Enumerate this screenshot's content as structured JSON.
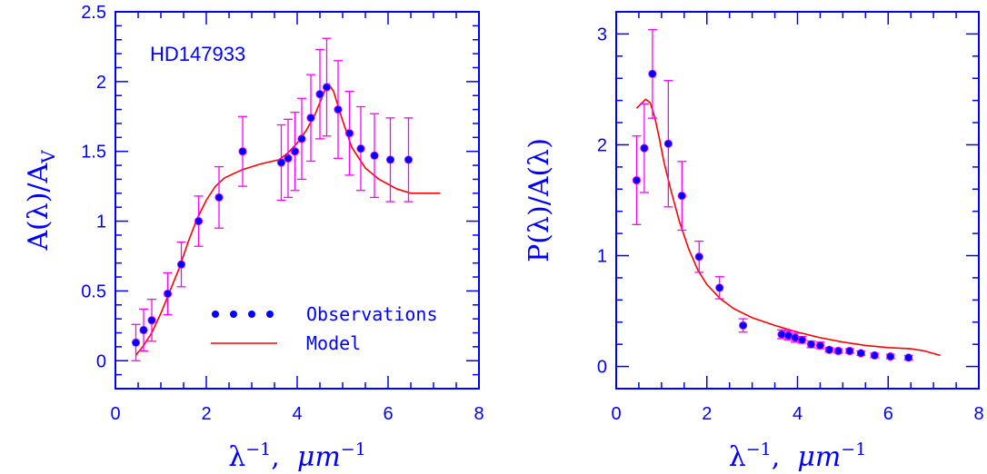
{
  "chart_data": [
    {
      "type": "scatter",
      "title": "",
      "label": "HD147933",
      "xlabel": {
        "base": "λ",
        "exp": "−1",
        "sep": ",  ",
        "unit": "μm",
        "unit_exp": "−1"
      },
      "ylabel": {
        "text": "A(λ)/A",
        "sub": "V"
      },
      "xlim": [
        0,
        8
      ],
      "ylim": [
        -0.2,
        2.5
      ],
      "x_ticks": [
        0,
        2,
        4,
        6,
        8
      ],
      "y_ticks": [
        0,
        0.5,
        1,
        1.5,
        2,
        2.5
      ],
      "y_tick_labels": [
        "0",
        "0.5",
        "1",
        "1.5",
        "2",
        "2.5"
      ],
      "legend": {
        "placement": "bottom-center",
        "observations_label": "Observations",
        "model_label": "Model"
      },
      "colors": {
        "axes": "#0000ff",
        "points": "#0000ff",
        "errorbars": "#ff00ff",
        "model": "#ff0000"
      },
      "observations": [
        {
          "x": 0.45,
          "y": 0.13,
          "err": 0.13
        },
        {
          "x": 0.62,
          "y": 0.22,
          "err": 0.15
        },
        {
          "x": 0.8,
          "y": 0.29,
          "err": 0.15
        },
        {
          "x": 1.15,
          "y": 0.48,
          "err": 0.15
        },
        {
          "x": 1.45,
          "y": 0.69,
          "err": 0.16
        },
        {
          "x": 1.83,
          "y": 1.0,
          "err": 0.18
        },
        {
          "x": 2.28,
          "y": 1.17,
          "err": 0.22
        },
        {
          "x": 2.8,
          "y": 1.5,
          "err": 0.25
        },
        {
          "x": 3.65,
          "y": 1.42,
          "err": 0.27
        },
        {
          "x": 3.8,
          "y": 1.45,
          "err": 0.28
        },
        {
          "x": 3.95,
          "y": 1.5,
          "err": 0.28
        },
        {
          "x": 4.1,
          "y": 1.59,
          "err": 0.29
        },
        {
          "x": 4.3,
          "y": 1.74,
          "err": 0.31
        },
        {
          "x": 4.5,
          "y": 1.91,
          "err": 0.32
        },
        {
          "x": 4.65,
          "y": 1.96,
          "err": 0.35
        },
        {
          "x": 4.9,
          "y": 1.8,
          "err": 0.35
        },
        {
          "x": 5.15,
          "y": 1.63,
          "err": 0.3
        },
        {
          "x": 5.4,
          "y": 1.52,
          "err": 0.3
        },
        {
          "x": 5.7,
          "y": 1.47,
          "err": 0.3
        },
        {
          "x": 6.05,
          "y": 1.44,
          "err": 0.3
        },
        {
          "x": 6.45,
          "y": 1.44,
          "err": 0.3
        }
      ],
      "model": {
        "x": [
          0.45,
          0.6,
          0.8,
          1.0,
          1.2,
          1.4,
          1.6,
          1.8,
          2.0,
          2.2,
          2.4,
          2.8,
          3.2,
          3.6,
          3.8,
          4.0,
          4.2,
          4.4,
          4.6,
          4.7,
          4.8,
          5.0,
          5.2,
          5.5,
          5.8,
          6.2,
          6.5,
          6.8,
          7.15
        ],
        "y": [
          0.04,
          0.1,
          0.2,
          0.34,
          0.5,
          0.66,
          0.85,
          1.02,
          1.15,
          1.25,
          1.31,
          1.37,
          1.41,
          1.44,
          1.49,
          1.56,
          1.65,
          1.77,
          1.93,
          1.98,
          1.93,
          1.72,
          1.53,
          1.38,
          1.3,
          1.23,
          1.2,
          1.2,
          1.2
        ]
      }
    },
    {
      "type": "scatter",
      "title": "",
      "xlabel": {
        "base": "λ",
        "exp": "−1",
        "sep": ",  ",
        "unit": "μm",
        "unit_exp": "−1"
      },
      "ylabel": {
        "text": "P(λ)/A(λ)"
      },
      "xlim": [
        0,
        8
      ],
      "ylim": [
        -0.2,
        3.2
      ],
      "x_ticks": [
        0,
        2,
        4,
        6,
        8
      ],
      "y_ticks": [
        0,
        1,
        2,
        3
      ],
      "y_tick_labels": [
        "0",
        "1",
        "2",
        "3"
      ],
      "colors": {
        "axes": "#0000ff",
        "points": "#0000ff",
        "errorbars": "#ff00ff",
        "model": "#ff0000"
      },
      "observations": [
        {
          "x": 0.45,
          "y": 1.68,
          "err": 0.4
        },
        {
          "x": 0.62,
          "y": 1.97,
          "err": 0.4
        },
        {
          "x": 0.8,
          "y": 2.64,
          "err": 0.4
        },
        {
          "x": 1.15,
          "y": 2.01,
          "err": 0.57
        },
        {
          "x": 1.45,
          "y": 1.54,
          "err": 0.31
        },
        {
          "x": 1.83,
          "y": 0.99,
          "err": 0.14
        },
        {
          "x": 2.28,
          "y": 0.71,
          "err": 0.1
        },
        {
          "x": 2.8,
          "y": 0.37,
          "err": 0.06
        },
        {
          "x": 3.65,
          "y": 0.29,
          "err": 0.04
        },
        {
          "x": 3.8,
          "y": 0.28,
          "err": 0.04
        },
        {
          "x": 3.95,
          "y": 0.26,
          "err": 0.04
        },
        {
          "x": 4.1,
          "y": 0.24,
          "err": 0.03
        },
        {
          "x": 4.3,
          "y": 0.2,
          "err": 0.03
        },
        {
          "x": 4.5,
          "y": 0.19,
          "err": 0.03
        },
        {
          "x": 4.7,
          "y": 0.15,
          "err": 0.02
        },
        {
          "x": 4.9,
          "y": 0.14,
          "err": 0.02
        },
        {
          "x": 5.15,
          "y": 0.14,
          "err": 0.02
        },
        {
          "x": 5.4,
          "y": 0.12,
          "err": 0.02
        },
        {
          "x": 5.7,
          "y": 0.1,
          "err": 0.02
        },
        {
          "x": 6.05,
          "y": 0.09,
          "err": 0.02
        },
        {
          "x": 6.45,
          "y": 0.08,
          "err": 0.02
        }
      ],
      "model": {
        "x": [
          0.45,
          0.55,
          0.65,
          0.75,
          0.85,
          0.95,
          1.05,
          1.2,
          1.4,
          1.6,
          1.8,
          2.0,
          2.3,
          2.6,
          3.0,
          3.5,
          4.0,
          4.5,
          5.0,
          5.5,
          6.0,
          6.5,
          6.8,
          7.15
        ],
        "y": [
          2.33,
          2.37,
          2.41,
          2.38,
          2.25,
          2.06,
          1.85,
          1.6,
          1.3,
          1.06,
          0.87,
          0.74,
          0.61,
          0.52,
          0.44,
          0.37,
          0.31,
          0.26,
          0.22,
          0.19,
          0.17,
          0.16,
          0.14,
          0.1
        ]
      }
    }
  ]
}
